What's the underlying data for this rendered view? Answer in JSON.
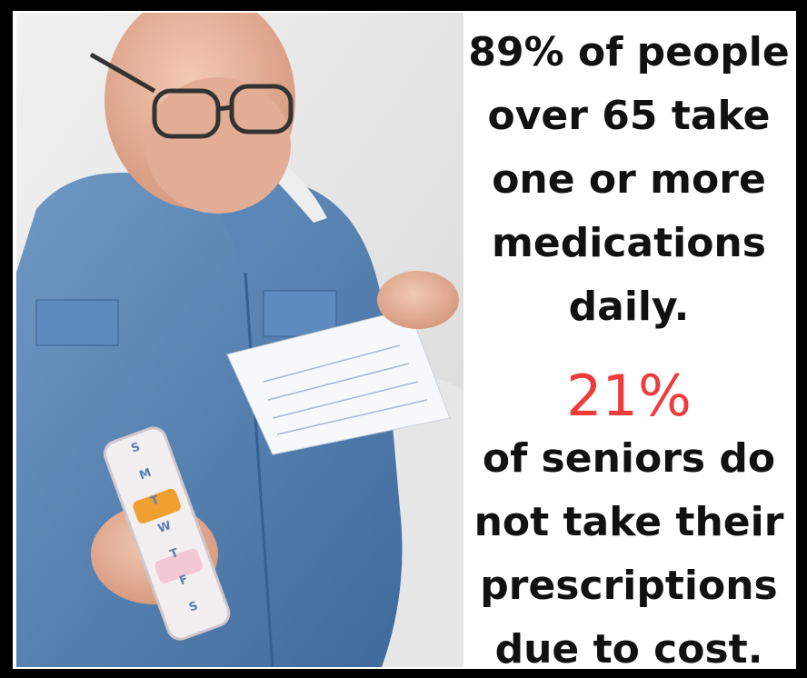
{
  "statement": {
    "lines": [
      "89% of people",
      "over 65 take",
      "one or more",
      "medications",
      "daily."
    ]
  },
  "highlight": {
    "figure": "21%",
    "lines": [
      "of seniors do",
      "not take their",
      "prescriptions",
      "due to cost."
    ]
  },
  "pill_box": {
    "days": [
      "S",
      "M",
      "T",
      "W",
      "T",
      "F",
      "S"
    ]
  }
}
